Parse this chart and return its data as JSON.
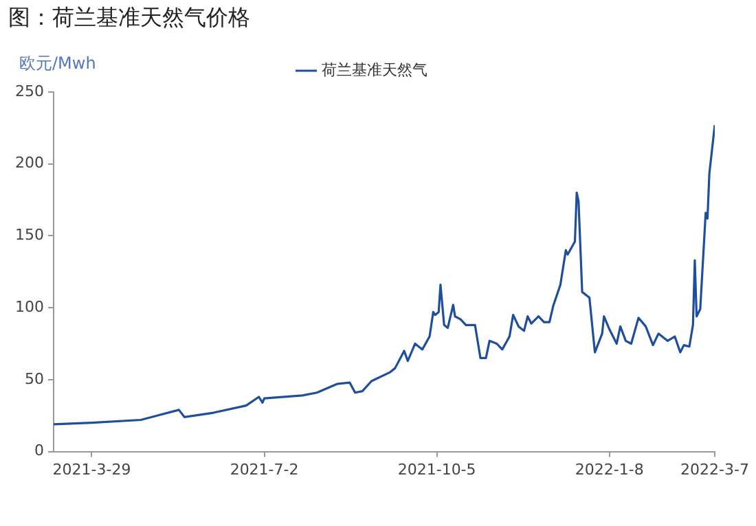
{
  "chart_data": {
    "type": "line",
    "title": "图：荷兰基准天然气价格",
    "ylabel": "欧元/Mwh",
    "legend": "top",
    "marker": "none",
    "line_style": "solid",
    "grid": false,
    "xlim": [
      "2021-03-08",
      "2022-03-07"
    ],
    "xticks": [
      {
        "value": "2021-03-29",
        "label": "2021-3-29"
      },
      {
        "value": "2021-07-02",
        "label": "2021-7-2"
      },
      {
        "value": "2021-10-05",
        "label": "2021-10-5"
      },
      {
        "value": "2022-01-08",
        "label": "2022-1-8"
      },
      {
        "value": "2022-03-07",
        "label": "2022-3-7"
      }
    ],
    "ylim": [
      0,
      250
    ],
    "yticks": [
      0,
      50,
      100,
      150,
      200,
      250
    ],
    "x": [
      "2021-03-08",
      "2021-03-29",
      "2021-04-25",
      "2021-05-04",
      "2021-05-16",
      "2021-05-19",
      "2021-06-04",
      "2021-06-22",
      "2021-06-29",
      "2021-07-01",
      "2021-07-02",
      "2021-07-23",
      "2021-07-31",
      "2021-08-11",
      "2021-08-18",
      "2021-08-21",
      "2021-08-25",
      "2021-08-30",
      "2021-09-09",
      "2021-09-12",
      "2021-09-17",
      "2021-09-19",
      "2021-09-23",
      "2021-09-27",
      "2021-10-01",
      "2021-10-03",
      "2021-10-04",
      "2021-10-06",
      "2021-10-07",
      "2021-10-09",
      "2021-10-11",
      "2021-10-14",
      "2021-10-15",
      "2021-10-18",
      "2021-10-21",
      "2021-10-26",
      "2021-10-29",
      "2021-11-01",
      "2021-11-03",
      "2021-11-07",
      "2021-11-10",
      "2021-11-14",
      "2021-11-16",
      "2021-11-19",
      "2021-11-22",
      "2021-11-24",
      "2021-11-26",
      "2021-11-30",
      "2021-12-03",
      "2021-12-06",
      "2021-12-08",
      "2021-12-12",
      "2021-12-15",
      "2021-12-16",
      "2021-12-20",
      "2021-12-21",
      "2021-12-22",
      "2021-12-24",
      "2021-12-28",
      "2021-12-31",
      "2022-01-04",
      "2022-01-05",
      "2022-01-08",
      "2022-01-12",
      "2022-01-14",
      "2022-01-17",
      "2022-01-20",
      "2022-01-24",
      "2022-01-28",
      "2022-02-01",
      "2022-02-04",
      "2022-02-09",
      "2022-02-13",
      "2022-02-16",
      "2022-02-18",
      "2022-02-21",
      "2022-02-23",
      "2022-02-24",
      "2022-02-25",
      "2022-02-27",
      "2022-03-02",
      "2022-03-03",
      "2022-03-04",
      "2022-03-07"
    ],
    "series": [
      {
        "name": "荷兰基准天然气",
        "color": "#1f4e9c",
        "values": [
          19,
          20,
          22,
          25,
          29,
          24,
          27,
          32,
          38,
          34,
          37,
          39,
          41,
          47,
          48,
          41,
          42,
          49,
          55,
          58,
          70,
          63,
          75,
          71,
          80,
          97,
          95,
          97,
          116,
          88,
          86,
          102,
          94,
          92,
          88,
          88,
          65,
          65,
          77,
          75,
          71,
          80,
          95,
          87,
          84,
          94,
          89,
          94,
          90,
          90,
          101,
          116,
          140,
          137,
          146,
          180,
          174,
          111,
          107,
          69,
          82,
          94,
          85,
          75,
          87,
          77,
          75,
          93,
          87,
          74,
          82,
          77,
          80,
          69,
          74,
          73,
          88,
          133,
          94,
          99,
          166,
          162,
          193,
          227
        ]
      }
    ]
  }
}
